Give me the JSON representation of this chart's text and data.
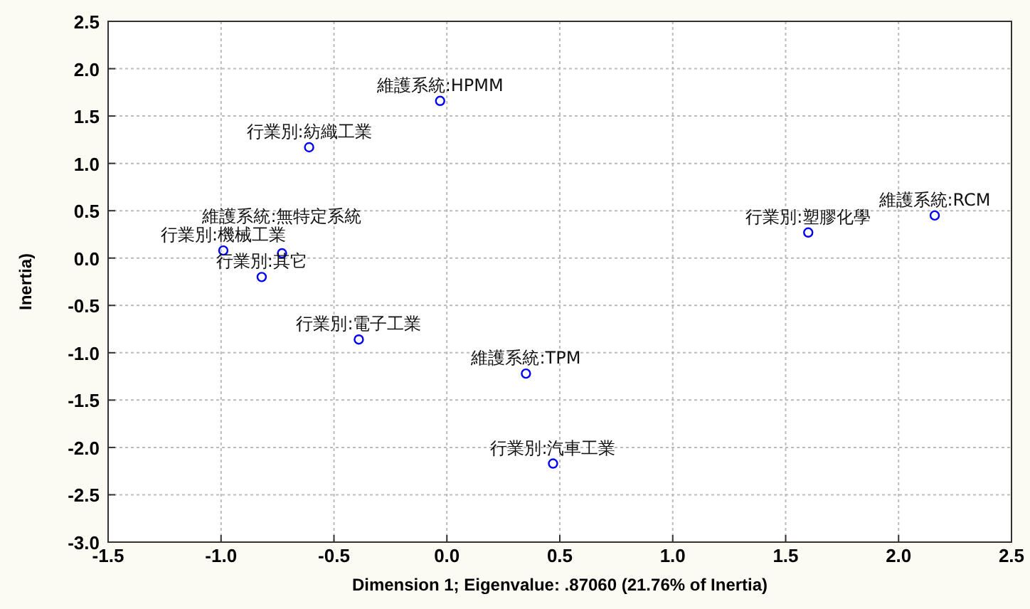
{
  "chart_data": {
    "type": "scatter",
    "xlabel": "Dimension 1; Eigenvalue: .87060 (21.76% of Inertia)",
    "ylabel": "Inertia)",
    "x": [
      -0.03,
      -0.61,
      2.16,
      1.6,
      -0.99,
      -0.73,
      -0.82,
      -0.39,
      0.35,
      0.47
    ],
    "series": [
      {
        "color": "#0000ff",
        "values": [
          1.66,
          1.17,
          0.45,
          0.27,
          0.08,
          0.05,
          -0.2,
          -0.86,
          -1.22,
          -2.17
        ]
      }
    ],
    "annotations": [
      {
        "text": "維護系統:HPMM",
        "x": -0.03,
        "y": 1.66
      },
      {
        "text": "行業別:紡織工業",
        "x": -0.61,
        "y": 1.17
      },
      {
        "text": "維護系統:RCM",
        "x": 2.16,
        "y": 0.45
      },
      {
        "text": "行業別:塑膠化學",
        "x": 1.6,
        "y": 0.27
      },
      {
        "text": "行業別:機械工業",
        "x": -0.99,
        "y": 0.08
      },
      {
        "text": "維護系統:無特定系統",
        "x": -0.73,
        "y": 0.05
      },
      {
        "text": "行業別:其它",
        "x": -0.82,
        "y": -0.2
      },
      {
        "text": "行業別:電子工業",
        "x": -0.39,
        "y": -0.86
      },
      {
        "text": "維護系統:TPM",
        "x": 0.35,
        "y": -1.22
      },
      {
        "text": "行業別:汽車工業",
        "x": 0.47,
        "y": -2.17
      }
    ],
    "xlim": [
      -1.5,
      2.5
    ],
    "xticks": [
      {
        "value": -1.5,
        "label": "-1.5"
      },
      {
        "value": -1,
        "label": "-1.0"
      },
      {
        "value": -0.5,
        "label": "-0.5"
      },
      {
        "value": 0,
        "label": "0.0"
      },
      {
        "value": 0.5,
        "label": "0.5"
      },
      {
        "value": 1,
        "label": "1.0"
      },
      {
        "value": 1.5,
        "label": "1.5"
      },
      {
        "value": 2,
        "label": "2.0"
      },
      {
        "value": 2.5,
        "label": "2.5"
      }
    ],
    "ylim": [
      -3,
      2.5
    ],
    "yticks": [
      {
        "value": -3,
        "label": "-3.0"
      },
      {
        "value": -2.5,
        "label": "-2.5"
      },
      {
        "value": -2,
        "label": "-2.0"
      },
      {
        "value": -1.5,
        "label": "-1.5"
      },
      {
        "value": -1,
        "label": "-1.0"
      },
      {
        "value": -0.5,
        "label": "-0.5"
      },
      {
        "value": 0,
        "label": "0.0"
      },
      {
        "value": 0.5,
        "label": "0.5"
      },
      {
        "value": 1,
        "label": "1.0"
      },
      {
        "value": 1.5,
        "label": "1.5"
      },
      {
        "value": 2,
        "label": "2.0"
      },
      {
        "value": 2.5,
        "label": "2.5"
      }
    ],
    "grid": true,
    "marker": "circle"
  }
}
